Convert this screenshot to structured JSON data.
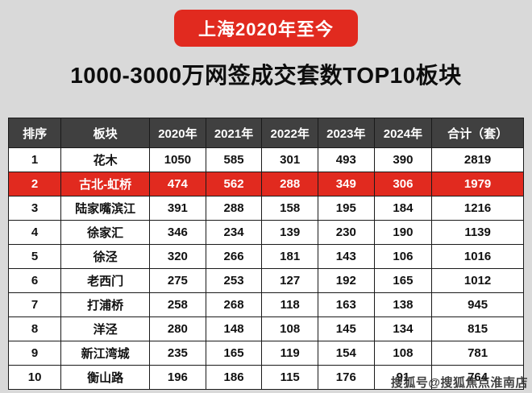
{
  "banner": {
    "title": "上海2020年至今"
  },
  "subtitle": "1000-3000万网签成交套数TOP10板块",
  "watermark": "搜狐号@搜狐焦点淮南店",
  "accent_colors": {
    "banner_red": "#e12a1f",
    "header_dark": "#404040",
    "highlight_red": "#e12a1f",
    "background_gray": "#d9d9d9"
  },
  "chart_data": {
    "type": "table",
    "title": "1000-3000万网签成交套数TOP10板块",
    "subtitle_banner": "上海2020年至今",
    "columns": [
      "排序",
      "板块",
      "2020年",
      "2021年",
      "2022年",
      "2023年",
      "2024年",
      "合计（套）"
    ],
    "rows": [
      {
        "rank": "1",
        "name": "花木",
        "values": [
          "1050",
          "585",
          "301",
          "493",
          "390",
          "2819"
        ],
        "highlight": false
      },
      {
        "rank": "2",
        "name": "古北-虹桥",
        "values": [
          "474",
          "562",
          "288",
          "349",
          "306",
          "1979"
        ],
        "highlight": true
      },
      {
        "rank": "3",
        "name": "陆家嘴滨江",
        "values": [
          "391",
          "288",
          "158",
          "195",
          "184",
          "1216"
        ],
        "highlight": false
      },
      {
        "rank": "4",
        "name": "徐家汇",
        "values": [
          "346",
          "234",
          "139",
          "230",
          "190",
          "1139"
        ],
        "highlight": false
      },
      {
        "rank": "5",
        "name": "徐泾",
        "values": [
          "320",
          "266",
          "181",
          "143",
          "106",
          "1016"
        ],
        "highlight": false
      },
      {
        "rank": "6",
        "name": "老西门",
        "values": [
          "275",
          "253",
          "127",
          "192",
          "165",
          "1012"
        ],
        "highlight": false
      },
      {
        "rank": "7",
        "name": "打浦桥",
        "values": [
          "258",
          "268",
          "118",
          "163",
          "138",
          "945"
        ],
        "highlight": false
      },
      {
        "rank": "8",
        "name": "洋泾",
        "values": [
          "280",
          "148",
          "108",
          "145",
          "134",
          "815"
        ],
        "highlight": false
      },
      {
        "rank": "9",
        "name": "新江湾城",
        "values": [
          "235",
          "165",
          "119",
          "154",
          "108",
          "781"
        ],
        "highlight": false
      },
      {
        "rank": "10",
        "name": "衡山路",
        "values": [
          "196",
          "186",
          "115",
          "176",
          "91",
          "764"
        ],
        "highlight": false
      }
    ]
  }
}
